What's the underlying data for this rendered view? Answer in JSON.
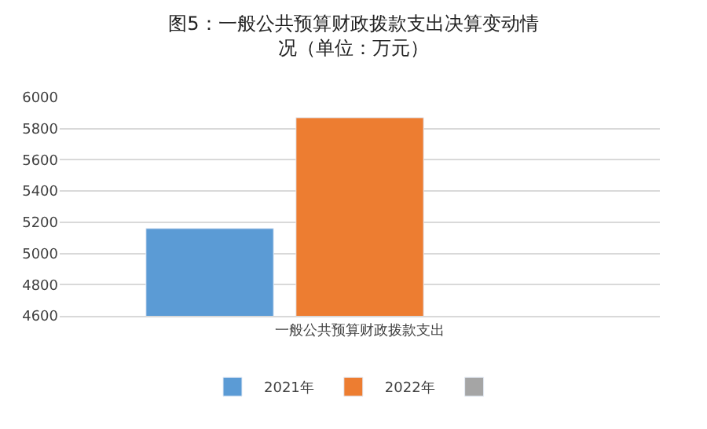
{
  "chart_data": {
    "type": "bar",
    "title": "图5：一般公共预算财政拨款支出决算变动情况（单位：万元）",
    "categories": [
      "一般公共预算财政拨款支出"
    ],
    "series": [
      {
        "name": "2021年",
        "color": "#5b9bd5",
        "values": [
          5160
        ]
      },
      {
        "name": "2022年",
        "color": "#ed7d31",
        "values": [
          5870
        ]
      },
      {
        "color": "#a5a5a5",
        "values": [
          null
        ]
      }
    ],
    "ylim": [
      4600,
      6000
    ],
    "yticks": [
      4600,
      4800,
      5000,
      5200,
      5400,
      5600,
      5800,
      6000
    ],
    "grid": "y",
    "legend": "bottom"
  }
}
